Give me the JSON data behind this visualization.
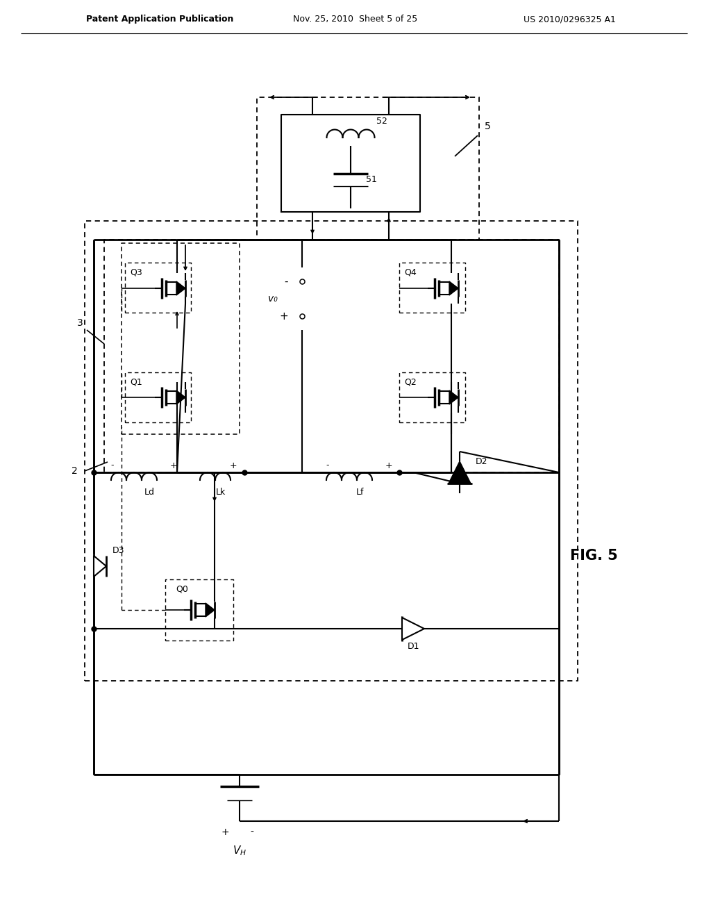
{
  "title_left": "Patent Application Publication",
  "title_mid": "Nov. 25, 2010  Sheet 5 of 25",
  "title_right": "US 2010/0296325 A1",
  "fig_label": "FIG. 5",
  "bg_color": "#ffffff",
  "line_color": "#000000",
  "dashed_color": "#000000"
}
